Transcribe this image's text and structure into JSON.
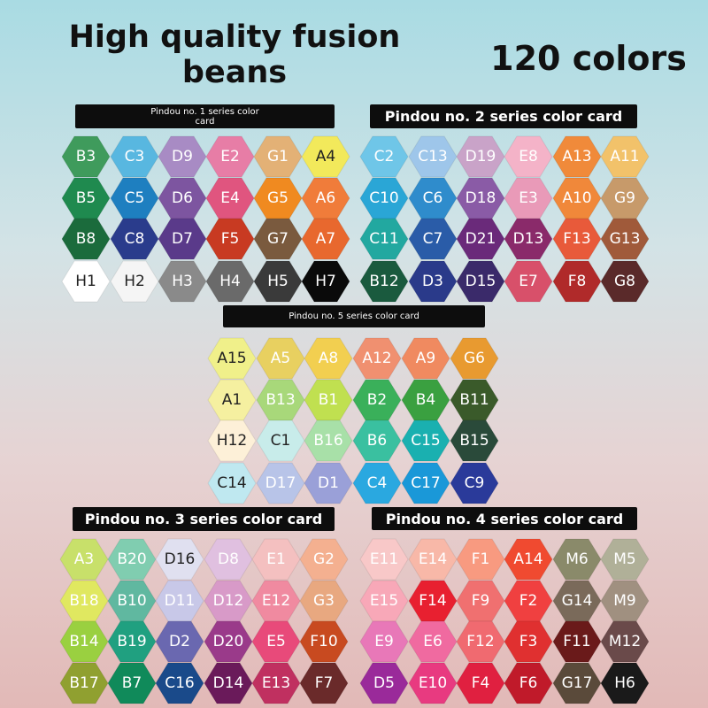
{
  "header": {
    "title": "High quality fusion beans",
    "subtitle": "120 colors"
  },
  "cards": [
    {
      "title": "Pindou no. 1 series color card",
      "cells": [
        [
          {
            "label": "B3",
            "color": "#3f9b5c"
          },
          {
            "label": "C3",
            "color": "#58b7e0"
          },
          {
            "label": "D9",
            "color": "#a88bc4"
          },
          {
            "label": "E2",
            "color": "#e77da6"
          },
          {
            "label": "G1",
            "color": "#e3b176"
          },
          {
            "label": "A4",
            "color": "#f2e95b"
          }
        ],
        [
          {
            "label": "B5",
            "color": "#1f8a4f"
          },
          {
            "label": "C5",
            "color": "#1e7fc0"
          },
          {
            "label": "D6",
            "color": "#7d55a0"
          },
          {
            "label": "E4",
            "color": "#e0557f"
          },
          {
            "label": "G5",
            "color": "#f08a20"
          },
          {
            "label": "A6",
            "color": "#f07c3a"
          }
        ],
        [
          {
            "label": "B8",
            "color": "#1b6b3c"
          },
          {
            "label": "C8",
            "color": "#2a3c8c"
          },
          {
            "label": "D7",
            "color": "#5a3a8a"
          },
          {
            "label": "F5",
            "color": "#c83a22"
          },
          {
            "label": "G7",
            "color": "#7a5a3e"
          },
          {
            "label": "A7",
            "color": "#e8682e"
          }
        ],
        [
          {
            "label": "H1",
            "color": "#ffffff"
          },
          {
            "label": "H2",
            "color": "#f5f5f5"
          },
          {
            "label": "H3",
            "color": "#8a8a8a"
          },
          {
            "label": "H4",
            "color": "#6a6a6a"
          },
          {
            "label": "H5",
            "color": "#3a3a3a"
          },
          {
            "label": "H7",
            "color": "#0a0a0a"
          }
        ]
      ]
    },
    {
      "title": "Pindou no. 2 series color card",
      "cells": [
        [
          {
            "label": "C2",
            "color": "#6fc6e8"
          },
          {
            "label": "C13",
            "color": "#9ec6ea"
          },
          {
            "label": "D19",
            "color": "#c9a3c8"
          },
          {
            "label": "E8",
            "color": "#f4b3c8"
          },
          {
            "label": "A13",
            "color": "#f08a3a"
          },
          {
            "label": "A11",
            "color": "#f2c26a"
          }
        ],
        [
          {
            "label": "C10",
            "color": "#2aa6d6"
          },
          {
            "label": "C6",
            "color": "#2f8ccc"
          },
          {
            "label": "D18",
            "color": "#8a5ba6"
          },
          {
            "label": "E3",
            "color": "#e99ab8"
          },
          {
            "label": "A10",
            "color": "#f0883a"
          },
          {
            "label": "G9",
            "color": "#c79a6a"
          }
        ],
        [
          {
            "label": "C11",
            "color": "#22a8a0"
          },
          {
            "label": "C7",
            "color": "#2a5ca8"
          },
          {
            "label": "D21",
            "color": "#6a2a7a"
          },
          {
            "label": "D13",
            "color": "#8a2a6a"
          },
          {
            "label": "F13",
            "color": "#e85a3a"
          },
          {
            "label": "G13",
            "color": "#a05a3a"
          }
        ],
        [
          {
            "label": "B12",
            "color": "#1a5a3e"
          },
          {
            "label": "D3",
            "color": "#2a3a8a"
          },
          {
            "label": "D15",
            "color": "#3a2a6a"
          },
          {
            "label": "E7",
            "color": "#d8506a"
          },
          {
            "label": "F8",
            "color": "#b02a2a"
          },
          {
            "label": "G8",
            "color": "#5a2a2a"
          }
        ]
      ]
    },
    {
      "title": "Pindou no. 5 series color card",
      "cells": [
        [
          {
            "label": "A15",
            "color": "#f0f08a"
          },
          {
            "label": "A5",
            "color": "#e8d060"
          },
          {
            "label": "A8",
            "color": "#f2cf50"
          },
          {
            "label": "A12",
            "color": "#f09070"
          },
          {
            "label": "A9",
            "color": "#f08a60"
          },
          {
            "label": "G6",
            "color": "#e89a30"
          }
        ],
        [
          {
            "label": "A1",
            "color": "#f5f0a0"
          },
          {
            "label": "B13",
            "color": "#a8d87a"
          },
          {
            "label": "B1",
            "color": "#c0e050"
          },
          {
            "label": "B2",
            "color": "#3ab05a"
          },
          {
            "label": "B4",
            "color": "#3aa040"
          },
          {
            "label": "B11",
            "color": "#3a5a2a"
          }
        ],
        [
          {
            "label": "H12",
            "color": "#fdf0d8"
          },
          {
            "label": "C1",
            "color": "#c8ecea"
          },
          {
            "label": "B16",
            "color": "#a8e0a8"
          },
          {
            "label": "B6",
            "color": "#3ac0a0"
          },
          {
            "label": "C15",
            "color": "#1ab0b0"
          },
          {
            "label": "B15",
            "color": "#2a4a3a"
          }
        ],
        [
          {
            "label": "C14",
            "color": "#bfe8f0"
          },
          {
            "label": "D17",
            "color": "#b8c4e8"
          },
          {
            "label": "D1",
            "color": "#9aa0d8"
          },
          {
            "label": "C4",
            "color": "#2aa8e0"
          },
          {
            "label": "C17",
            "color": "#1a98d8"
          },
          {
            "label": "C9",
            "color": "#2a3a9a"
          }
        ]
      ]
    },
    {
      "title": "Pindou no. 3 series color card",
      "cells": [
        [
          {
            "label": "A3",
            "color": "#c8e06a"
          },
          {
            "label": "B20",
            "color": "#80cdb0"
          },
          {
            "label": "D16",
            "color": "#e0e0f0"
          },
          {
            "label": "D8",
            "color": "#e0c0e0"
          },
          {
            "label": "E1",
            "color": "#f4c0c0"
          },
          {
            "label": "G2",
            "color": "#f4b090"
          }
        ],
        [
          {
            "label": "B18",
            "color": "#e0e860"
          },
          {
            "label": "B10",
            "color": "#60b8a0"
          },
          {
            "label": "D11",
            "color": "#c8c8e8"
          },
          {
            "label": "D12",
            "color": "#d89ac8"
          },
          {
            "label": "E12",
            "color": "#f08aa0"
          },
          {
            "label": "G3",
            "color": "#e8a880"
          }
        ],
        [
          {
            "label": "B14",
            "color": "#9ad040"
          },
          {
            "label": "B19",
            "color": "#20a080"
          },
          {
            "label": "D2",
            "color": "#6a68b0"
          },
          {
            "label": "D20",
            "color": "#9a3a8a"
          },
          {
            "label": "E5",
            "color": "#e84a7a"
          },
          {
            "label": "F10",
            "color": "#c84a20"
          }
        ],
        [
          {
            "label": "B17",
            "color": "#90a030"
          },
          {
            "label": "B7",
            "color": "#108a5a"
          },
          {
            "label": "C16",
            "color": "#1a4a8a"
          },
          {
            "label": "D14",
            "color": "#6a1a5a"
          },
          {
            "label": "E13",
            "color": "#c03060"
          },
          {
            "label": "F7",
            "color": "#6a2a2a"
          }
        ]
      ]
    },
    {
      "title": "Pindou no. 4 series color card",
      "cells": [
        [
          {
            "label": "E11",
            "color": "#f8c8c8"
          },
          {
            "label": "E14",
            "color": "#f8b8a8"
          },
          {
            "label": "F1",
            "color": "#f89a80"
          },
          {
            "label": "A14",
            "color": "#f04a30"
          },
          {
            "label": "M6",
            "color": "#8a8a6a"
          },
          {
            "label": "M5",
            "color": "#b0b098"
          }
        ],
        [
          {
            "label": "E15",
            "color": "#f8a8b8"
          },
          {
            "label": "F14",
            "color": "#e82030"
          },
          {
            "label": "F9",
            "color": "#f07070"
          },
          {
            "label": "F2",
            "color": "#f04040"
          },
          {
            "label": "G14",
            "color": "#7a6a5a"
          },
          {
            "label": "M9",
            "color": "#a09080"
          }
        ],
        [
          {
            "label": "E9",
            "color": "#e878b8"
          },
          {
            "label": "E6",
            "color": "#f06aa0"
          },
          {
            "label": "F12",
            "color": "#f06a70"
          },
          {
            "label": "F3",
            "color": "#e03030"
          },
          {
            "label": "F11",
            "color": "#6a1a1a"
          },
          {
            "label": "M12",
            "color": "#6a4a4a"
          }
        ],
        [
          {
            "label": "D5",
            "color": "#9a2a9a"
          },
          {
            "label": "E10",
            "color": "#e83a80"
          },
          {
            "label": "F4",
            "color": "#e02040"
          },
          {
            "label": "F6",
            "color": "#c01a2a"
          },
          {
            "label": "G17",
            "color": "#5a4a3a"
          },
          {
            "label": "H6",
            "color": "#1a1a1a"
          }
        ]
      ]
    }
  ]
}
